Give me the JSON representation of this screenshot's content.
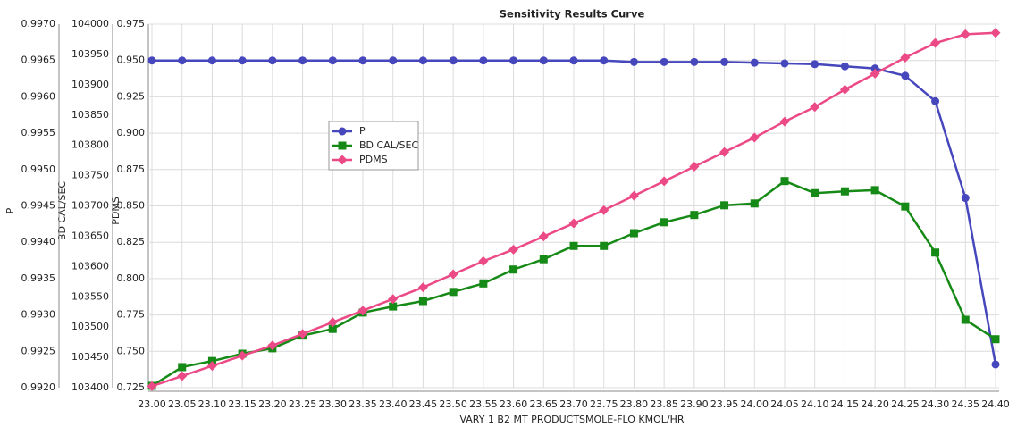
{
  "chart_data": {
    "type": "line",
    "title": "Sensitivity Results Curve",
    "xlabel": "VARY   1 B2 MT PRODUCTSMOLE-FLO KMOL/HR",
    "ylabel": "P",
    "y2label": "BD CAL/SEC",
    "y3label": "PDMS",
    "grid": true,
    "x": [
      23,
      23.05,
      23.1,
      23.15,
      23.2,
      23.25,
      23.3,
      23.35,
      23.4,
      23.45,
      23.5,
      23.55,
      23.6,
      23.65,
      23.7,
      23.75,
      23.8,
      23.85,
      23.9,
      23.95,
      24,
      24.05,
      24.1,
      24.15,
      24.2,
      24.25,
      24.3,
      24.35,
      24.4
    ],
    "xlim": [
      23,
      24.4
    ],
    "xticks": [
      {
        "value": 23,
        "label": "23.00"
      },
      23.05,
      {
        "value": 23.1,
        "label": "23.10"
      },
      23.15,
      {
        "value": 23.2,
        "label": "23.20"
      },
      23.25,
      {
        "value": 23.3,
        "label": "23.30"
      },
      23.35,
      {
        "value": 23.4,
        "label": "23.40"
      },
      23.45,
      {
        "value": 23.5,
        "label": "23.50"
      },
      23.55,
      {
        "value": 23.6,
        "label": "23.60"
      },
      23.65,
      {
        "value": 23.7,
        "label": "23.70"
      },
      23.75,
      {
        "value": 23.8,
        "label": "23.80"
      },
      23.85,
      {
        "value": 23.9,
        "label": "23.90"
      },
      23.95,
      {
        "value": 24,
        "label": "24.00"
      },
      24.05,
      {
        "value": 24.1,
        "label": "24.10"
      },
      24.15,
      {
        "value": 24.2,
        "label": "24.20"
      },
      24.25,
      {
        "value": 24.3,
        "label": "24.30"
      },
      24.35,
      {
        "value": 24.4,
        "label": "24.40"
      }
    ],
    "ylim": [
      0.992,
      0.997
    ],
    "yticks": [
      {
        "value": 0.992,
        "label": "0.9920"
      },
      0.9925,
      {
        "value": 0.993,
        "label": "0.9930"
      },
      0.9935,
      {
        "value": 0.994,
        "label": "0.9940"
      },
      0.9945,
      {
        "value": 0.995,
        "label": "0.9950"
      },
      0.9955,
      {
        "value": 0.996,
        "label": "0.9960"
      },
      0.9965,
      {
        "value": 0.997,
        "label": "0.9970"
      }
    ],
    "y2lim": [
      103400,
      104000
    ],
    "y2ticks": [
      103400,
      103450,
      103500,
      103550,
      103600,
      103650,
      103700,
      103750,
      103800,
      103850,
      103900,
      103950,
      104000
    ],
    "y3lim": [
      0.725,
      0.975
    ],
    "y3ticks": [
      0.725,
      {
        "value": 0.75,
        "label": "0.750"
      },
      0.775,
      {
        "value": 0.8,
        "label": "0.800"
      },
      0.825,
      {
        "value": 0.85,
        "label": "0.850"
      },
      0.875,
      {
        "value": 0.9,
        "label": "0.900"
      },
      0.925,
      {
        "value": 0.95,
        "label": "0.950"
      },
      0.975
    ],
    "series": [
      {
        "name": "P",
        "color": "#4747bd",
        "marker": "circle",
        "axis": "y",
        "values": [
          0.9965,
          0.9965,
          0.9965,
          0.9965,
          0.9965,
          0.9965,
          0.9965,
          0.9965,
          0.9965,
          0.9965,
          0.9965,
          0.9965,
          0.9965,
          0.9965,
          0.9965,
          0.9965,
          0.99648,
          0.99648,
          0.99648,
          0.99648,
          0.99647,
          0.99646,
          0.99645,
          0.99642,
          0.99639,
          0.99629,
          0.99594,
          0.99461,
          0.99232
        ]
      },
      {
        "name": "BD CAL/SEC",
        "color": "#168a16",
        "marker": "square",
        "axis": "y2",
        "values": [
          103403,
          103434,
          103444,
          103456,
          103465,
          103486,
          103497,
          103524,
          103534,
          103543,
          103558,
          103572,
          103595,
          103612,
          103634,
          103634,
          103655,
          103673,
          103685,
          103701,
          103704,
          103741,
          103721,
          103724,
          103726,
          103699,
          103623,
          103512,
          103480
        ]
      },
      {
        "name": "PDMS",
        "color": "#ec4a86",
        "marker": "diamond",
        "axis": "y3",
        "values": [
          0.726,
          0.733,
          0.74,
          0.747,
          0.754,
          0.762,
          0.77,
          0.778,
          0.786,
          0.794,
          0.803,
          0.812,
          0.82,
          0.829,
          0.838,
          0.847,
          0.857,
          0.867,
          0.877,
          0.887,
          0.897,
          0.908,
          0.918,
          0.93,
          0.941,
          0.952,
          0.962,
          0.968,
          0.969
        ]
      }
    ]
  }
}
